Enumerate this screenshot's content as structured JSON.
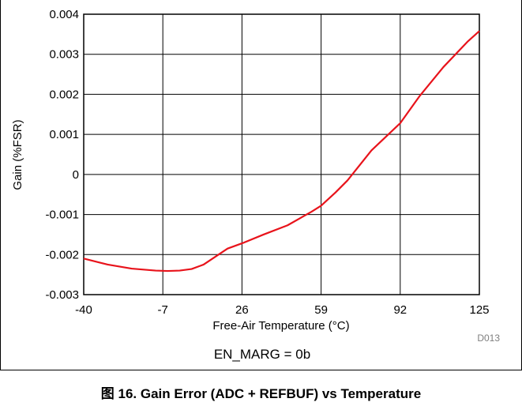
{
  "chart_data": {
    "type": "line",
    "title": "",
    "xlabel": "Free-Air Temperature (°C)",
    "ylabel": "Gain (%FSR)",
    "xlim": [
      -40,
      125
    ],
    "ylim": [
      -0.003,
      0.004
    ],
    "x_ticks": [
      "-40",
      "-7",
      "26",
      "59",
      "92",
      "125"
    ],
    "y_ticks": [
      "0.004",
      "0.003",
      "0.002",
      "0.001",
      "0",
      "-0.001",
      "-0.002",
      "-0.003"
    ],
    "grid": true,
    "series": [
      {
        "name": "",
        "color": "#e8131b",
        "x": [
          -40,
          -30,
          -20,
          -10,
          -5,
          0,
          5,
          10,
          15,
          20,
          26,
          35,
          45,
          55,
          59,
          65,
          70,
          80,
          92,
          100,
          110,
          120,
          125
        ],
        "y": [
          -0.0021,
          -0.00225,
          -0.00235,
          -0.0024,
          -0.00241,
          -0.0024,
          -0.00236,
          -0.00225,
          -0.00205,
          -0.00185,
          -0.00172,
          -0.0015,
          -0.00127,
          -0.00093,
          -0.00078,
          -0.00045,
          -0.00015,
          0.0006,
          0.00128,
          0.00195,
          0.00268,
          0.00331,
          0.00358
        ]
      }
    ],
    "code": "D013",
    "condition": "EN_MARG = 0b"
  },
  "figure": {
    "caption": "图 16. Gain Error (ADC + REFBUF) vs Temperature"
  }
}
